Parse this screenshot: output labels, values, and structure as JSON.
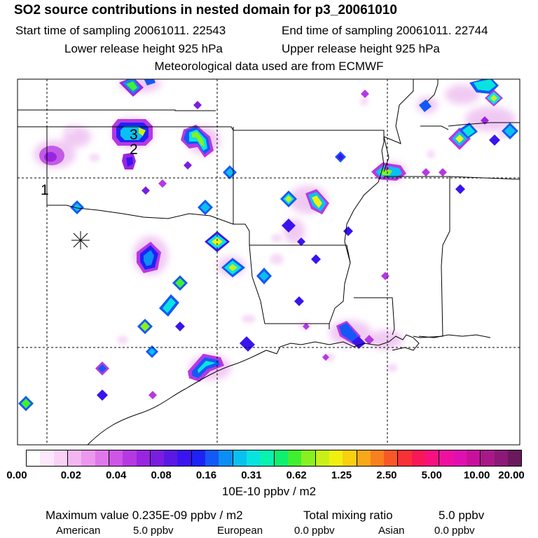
{
  "header": {
    "title": "SO2 source contributions in nested domain for p3_20061010",
    "start_label": "Start time of sampling 20061011. 22543",
    "end_label": "End time of sampling 20061011. 22744",
    "lower_label": "Lower release height  925 hPa",
    "upper_label": "Upper release height  925 hPa",
    "met_label": "Meteorological data used are from ECMWF"
  },
  "map": {
    "markers": [
      "1",
      "2",
      "3"
    ],
    "receptor_symbol": "asterisk-icon"
  },
  "colorbar": {
    "colors": [
      "#ffffff",
      "#fde8fb",
      "#f9d2f6",
      "#f3b6f1",
      "#eb98ee",
      "#df78ea",
      "#cf55e6",
      "#b638e3",
      "#9a25e0",
      "#7a1de0",
      "#5a18e5",
      "#3a14ee",
      "#1f22f5",
      "#1458f6",
      "#0c8ef4",
      "#0ac0f0",
      "#08e3e0",
      "#08f2b0",
      "#10f070",
      "#40f030",
      "#88f020",
      "#c8f018",
      "#f0f010",
      "#f8d010",
      "#f8a818",
      "#f88020",
      "#f85828",
      "#f83038",
      "#f81858",
      "#f81080",
      "#f010a0",
      "#e010b0",
      "#c8109c",
      "#a81888",
      "#8c1878",
      "#6a1a5c"
    ],
    "ticks": [
      "0.00",
      "0.02",
      "0.04",
      "0.08",
      "0.16",
      "0.31",
      "0.62",
      "1.25",
      "2.50",
      "5.00",
      "10.00",
      "20.00"
    ],
    "units": "10E-10 ppbv / m2"
  },
  "footer": {
    "max_label": "Maximum value  0.235E-09 ppbv / m2",
    "total_label": "Total mixing ratio",
    "total_value": "5.0 ppbv",
    "american_label": "American",
    "american_value": "5.0 ppbv",
    "european_label": "European",
    "european_value": "0.0 ppbv",
    "asian_label": "Asian",
    "asian_value": "0.0 ppbv"
  }
}
